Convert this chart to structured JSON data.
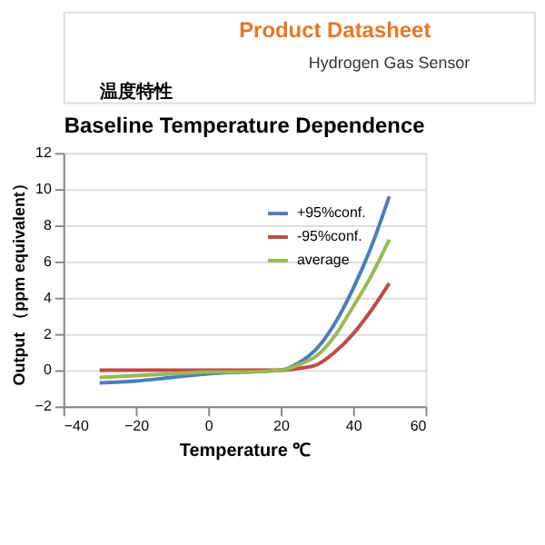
{
  "chart_data": {
    "type": "line",
    "title": "Baseline Temperature Dependence",
    "annotations": [
      "Product Datasheet",
      "Hydrogen Gas Sensor",
      "温度特性"
    ],
    "xlabel": "Temperature ℃",
    "ylabel": "Output （ppm equivalent）",
    "xlim": [
      -40,
      60
    ],
    "xticks": [
      -40,
      -20,
      0,
      20,
      40,
      60
    ],
    "ylim": [
      -2,
      12
    ],
    "yticks": [
      -2,
      0,
      2,
      4,
      6,
      8,
      10,
      12
    ],
    "grid": "y",
    "legend": "center",
    "marker": "none",
    "line_style": "solid",
    "series": [
      {
        "name": "+95%conf.",
        "color": "#4a7ebb",
        "x": [
          -30,
          -20,
          -10,
          0,
          10,
          20,
          25,
          30,
          35,
          40,
          45,
          50
        ],
        "values": [
          -0.7,
          -0.6,
          -0.4,
          -0.2,
          -0.1,
          0,
          0.4,
          1.2,
          2.6,
          4.5,
          6.8,
          9.6
        ]
      },
      {
        "name": "-95%conf.",
        "color": "#be4b48",
        "x": [
          -30,
          -20,
          -10,
          0,
          10,
          20,
          25,
          30,
          35,
          40,
          45,
          50
        ],
        "values": [
          0,
          0,
          0,
          0,
          0,
          0,
          0.1,
          0.3,
          1.0,
          2.0,
          3.3,
          4.8
        ]
      },
      {
        "name": "average",
        "color": "#98b954",
        "x": [
          -30,
          -20,
          -10,
          0,
          10,
          20,
          25,
          30,
          35,
          40,
          45,
          50
        ],
        "values": [
          -0.4,
          -0.3,
          -0.2,
          -0.1,
          -0.1,
          0,
          0.3,
          0.8,
          1.9,
          3.5,
          5.2,
          7.2
        ]
      }
    ]
  }
}
